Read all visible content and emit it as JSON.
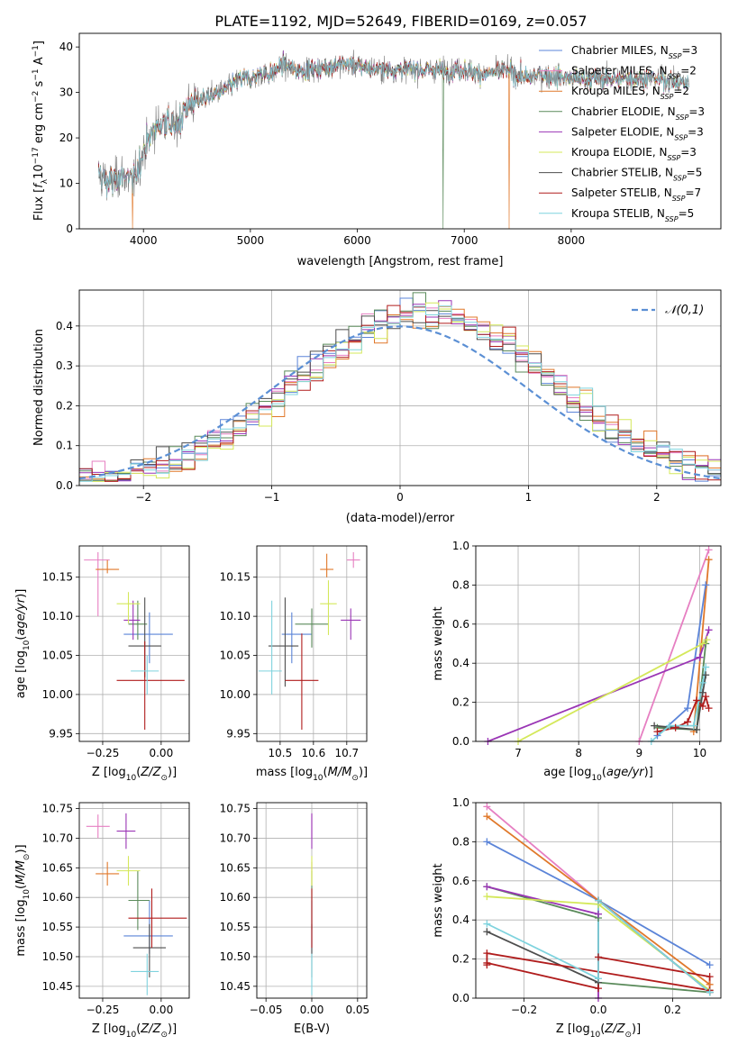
{
  "figure": {
    "title": "PLATE=1192, MJD=52649, FIBERID=0169, z=0.057"
  },
  "models": [
    {
      "name": "Chabrier MILES",
      "nssp": "3",
      "color": "#5b84d8"
    },
    {
      "name": "Salpeter MILES",
      "nssp": "2",
      "color": "#e67fc2"
    },
    {
      "name": "Kroupa MILES",
      "nssp": "2",
      "color": "#e0782a"
    },
    {
      "name": "Chabrier ELODIE",
      "nssp": "3",
      "color": "#5a8a5a"
    },
    {
      "name": "Salpeter ELODIE",
      "nssp": "3",
      "color": "#9a35b5"
    },
    {
      "name": "Kroupa ELODIE",
      "nssp": "3",
      "color": "#d4e85a"
    },
    {
      "name": "Chabrier STELIB",
      "nssp": "5",
      "color": "#4d4d4d"
    },
    {
      "name": "Salpeter STELIB",
      "nssp": "7",
      "color": "#b01c1c"
    },
    {
      "name": "Kroupa STELIB",
      "nssp": "5",
      "color": "#7fd3de"
    }
  ],
  "chart_data": [
    {
      "id": "spectrum",
      "type": "line",
      "xlabel": "wavelength [Angstrom, rest frame]",
      "ylabel": "Flux [f_λ 10^-17 erg cm^-2 s^-1 A^-1]",
      "xlim": [
        3400,
        9400
      ],
      "ylim": [
        0,
        43
      ],
      "xticks": [
        4000,
        5000,
        6000,
        7000,
        8000
      ],
      "yticks": [
        0,
        10,
        20,
        30,
        40
      ],
      "grid": false,
      "legend": "top-right",
      "continuum": [
        [
          3580,
          12
        ],
        [
          3700,
          10
        ],
        [
          3800,
          12
        ],
        [
          3900,
          10
        ],
        [
          4000,
          17
        ],
        [
          4100,
          22
        ],
        [
          4200,
          24
        ],
        [
          4300,
          22
        ],
        [
          4400,
          27
        ],
        [
          4500,
          28
        ],
        [
          4600,
          29
        ],
        [
          4700,
          30
        ],
        [
          4800,
          31
        ],
        [
          4900,
          33
        ],
        [
          5000,
          33
        ],
        [
          5100,
          34
        ],
        [
          5200,
          34
        ],
        [
          5300,
          36
        ],
        [
          5400,
          35
        ],
        [
          5500,
          35
        ],
        [
          5600,
          35
        ],
        [
          5800,
          36
        ],
        [
          6000,
          36
        ],
        [
          6200,
          35
        ],
        [
          6400,
          35
        ],
        [
          6600,
          35
        ],
        [
          6800,
          35
        ],
        [
          7000,
          35
        ],
        [
          7200,
          34
        ],
        [
          7400,
          35
        ],
        [
          7500,
          34
        ],
        [
          7600,
          33
        ],
        [
          7700,
          34
        ],
        [
          8000,
          33
        ],
        [
          8200,
          33
        ],
        [
          8500,
          33
        ],
        [
          8800,
          33
        ],
        [
          9100,
          32
        ]
      ],
      "data_range": [
        3580,
        9100
      ],
      "dropouts": [
        3580,
        3900,
        3920,
        6800,
        7420
      ]
    },
    {
      "id": "residuals",
      "type": "line",
      "xlabel": "(data-model)/error",
      "ylabel": "Normed distribution",
      "xlim": [
        -2.5,
        2.5
      ],
      "ylim": [
        0,
        0.49
      ],
      "xticks": [
        -2,
        -1,
        0,
        1,
        2
      ],
      "yticks": [
        0.0,
        0.1,
        0.2,
        0.3,
        0.4
      ],
      "grid": true,
      "legend": "top-right",
      "reference": {
        "label": "𝒩(0,1)",
        "mean": 0,
        "sigma": 1,
        "color": "#5b8fd4"
      },
      "bin_width": 0.1
    },
    {
      "id": "age-vs-Z",
      "type": "scatter",
      "xlabel": "Z [log10(Z/Z⊙)]",
      "ylabel": "age [log10(age/yr)]",
      "xlim": [
        -0.35,
        0.12
      ],
      "ylim": [
        9.94,
        10.19
      ],
      "xticks": [
        -0.25,
        0.0
      ],
      "yticks": [
        9.95,
        10.0,
        10.05,
        10.1,
        10.15
      ],
      "grid": true,
      "points": [
        {
          "x": -0.05,
          "y": 10.077,
          "xerr": [
            0.11,
            0.1
          ],
          "yerr": [
            0.037,
            0.028
          ]
        },
        {
          "x": -0.27,
          "y": 10.172,
          "xerr": [
            0.06,
            0.05
          ],
          "yerr": [
            0.072,
            0.01
          ]
        },
        {
          "x": -0.23,
          "y": 10.16,
          "xerr": [
            0.05,
            0.05
          ],
          "yerr": [
            0.005,
            0.012
          ]
        },
        {
          "x": -0.1,
          "y": 10.09,
          "xerr": [
            0.04,
            0.04
          ],
          "yerr": [
            0.02,
            0.03
          ]
        },
        {
          "x": -0.12,
          "y": 10.095,
          "xerr": [
            0.04,
            0.03
          ],
          "yerr": [
            0.025,
            0.025
          ]
        },
        {
          "x": -0.14,
          "y": 10.116,
          "xerr": [
            0.05,
            0.05
          ],
          "yerr": [
            0.025,
            0.015
          ]
        },
        {
          "x": -0.07,
          "y": 10.062,
          "xerr": [
            0.07,
            0.07
          ],
          "yerr": [
            0.04,
            0.062
          ]
        },
        {
          "x": -0.07,
          "y": 10.018,
          "xerr": [
            0.12,
            0.17
          ],
          "yerr": [
            0.063,
            0.05
          ]
        },
        {
          "x": -0.06,
          "y": 10.03,
          "xerr": [
            0.07,
            0.05
          ],
          "yerr": [
            0.03,
            0.02
          ]
        }
      ]
    },
    {
      "id": "age-vs-mass",
      "type": "scatter",
      "xlabel": "mass [log10(M/M⊙)]",
      "ylabel": "",
      "xlim": [
        10.43,
        10.76
      ],
      "ylim": [
        9.94,
        10.19
      ],
      "xticks": [
        10.5,
        10.6,
        10.7
      ],
      "yticks": [
        9.95,
        10.0,
        10.05,
        10.1,
        10.15
      ],
      "grid": true,
      "points": [
        {
          "x": 10.535,
          "y": 10.077,
          "xerr": [
            0.03,
            0.06
          ],
          "yerr": [
            0.037,
            0.028
          ]
        },
        {
          "x": 10.72,
          "y": 10.172,
          "xerr": [
            0.02,
            0.02
          ],
          "yerr": [
            0.01,
            0.01
          ]
        },
        {
          "x": 10.64,
          "y": 10.16,
          "xerr": [
            0.02,
            0.02
          ],
          "yerr": [
            0.01,
            0.02
          ]
        },
        {
          "x": 10.595,
          "y": 10.09,
          "xerr": [
            0.05,
            0.05
          ],
          "yerr": [
            0.03,
            0.02
          ]
        },
        {
          "x": 10.712,
          "y": 10.095,
          "xerr": [
            0.03,
            0.03
          ],
          "yerr": [
            0.025,
            0.015
          ]
        },
        {
          "x": 10.645,
          "y": 10.116,
          "xerr": [
            0.025,
            0.025
          ],
          "yerr": [
            0.04,
            0.03
          ]
        },
        {
          "x": 10.515,
          "y": 10.062,
          "xerr": [
            0.05,
            0.04
          ],
          "yerr": [
            0.052,
            0.062
          ]
        },
        {
          "x": 10.565,
          "y": 10.018,
          "xerr": [
            0.05,
            0.05
          ],
          "yerr": [
            0.063,
            0.06
          ]
        },
        {
          "x": 10.475,
          "y": 10.03,
          "xerr": [
            0.04,
            0.03
          ],
          "yerr": [
            0.03,
            0.09
          ]
        }
      ]
    },
    {
      "id": "weight-vs-age",
      "type": "line",
      "xlabel": "age [log10(age/yr)]",
      "ylabel": "mass weight",
      "xlim": [
        6.3,
        10.35
      ],
      "ylim": [
        0,
        1.0
      ],
      "xticks": [
        7,
        8,
        9,
        10
      ],
      "yticks": [
        0.0,
        0.2,
        0.4,
        0.6,
        0.8,
        1.0
      ],
      "grid": true,
      "series": [
        {
          "x": [
            9.3,
            9.8,
            10.1
          ],
          "y": [
            0.03,
            0.17,
            0.8
          ]
        },
        {
          "x": [
            9.0,
            10.15
          ],
          "y": [
            0.0,
            0.98
          ]
        },
        {
          "x": [
            9.9,
            10.15
          ],
          "y": [
            0.05,
            0.93
          ]
        },
        {
          "x": [
            9.3,
            9.95,
            10.1
          ],
          "y": [
            0.07,
            0.06,
            0.5
          ]
        },
        {
          "x": [
            6.5,
            10.0,
            10.15
          ],
          "y": [
            0.0,
            0.43,
            0.57
          ]
        },
        {
          "x": [
            7.0,
            10.05,
            10.12
          ],
          "y": [
            0.0,
            0.5,
            0.52
          ]
        },
        {
          "x": [
            9.25,
            9.95,
            10.05,
            10.1
          ],
          "y": [
            0.08,
            0.06,
            0.25,
            0.34
          ]
        },
        {
          "x": [
            9.3,
            9.6,
            9.8,
            9.95,
            10.05,
            10.1,
            10.15
          ],
          "y": [
            0.05,
            0.07,
            0.1,
            0.21,
            0.18,
            0.23,
            0.17
          ]
        },
        {
          "x": [
            9.2,
            9.5,
            9.9,
            10.05,
            10.1
          ],
          "y": [
            0.0,
            0.08,
            0.08,
            0.3,
            0.38
          ]
        }
      ]
    },
    {
      "id": "mass-vs-Z",
      "type": "scatter",
      "xlabel": "Z [log10(Z/Z⊙)]",
      "ylabel": "mass [log10(M/M⊙)]",
      "xlim": [
        -0.35,
        0.12
      ],
      "ylim": [
        10.43,
        10.76
      ],
      "xticks": [
        -0.25,
        0.0
      ],
      "yticks": [
        10.45,
        10.5,
        10.55,
        10.6,
        10.65,
        10.7,
        10.75
      ],
      "grid": true,
      "points": [
        {
          "x": -0.05,
          "y": 10.535,
          "xerr": [
            0.11,
            0.1
          ],
          "yerr": [
            0.03,
            0.06
          ]
        },
        {
          "x": -0.27,
          "y": 10.72,
          "xerr": [
            0.05,
            0.05
          ],
          "yerr": [
            0.02,
            0.02
          ]
        },
        {
          "x": -0.23,
          "y": 10.64,
          "xerr": [
            0.05,
            0.05
          ],
          "yerr": [
            0.02,
            0.02
          ]
        },
        {
          "x": -0.1,
          "y": 10.595,
          "xerr": [
            0.04,
            0.05
          ],
          "yerr": [
            0.05,
            0.05
          ]
        },
        {
          "x": -0.15,
          "y": 10.712,
          "xerr": [
            0.04,
            0.04
          ],
          "yerr": [
            0.03,
            0.03
          ]
        },
        {
          "x": -0.14,
          "y": 10.645,
          "xerr": [
            0.05,
            0.05
          ],
          "yerr": [
            0.025,
            0.025
          ]
        },
        {
          "x": -0.05,
          "y": 10.515,
          "xerr": [
            0.07,
            0.07
          ],
          "yerr": [
            0.05,
            0.04
          ]
        },
        {
          "x": -0.04,
          "y": 10.565,
          "xerr": [
            0.1,
            0.15
          ],
          "yerr": [
            0.05,
            0.05
          ]
        },
        {
          "x": -0.06,
          "y": 10.475,
          "xerr": [
            0.07,
            0.05
          ],
          "yerr": [
            0.04,
            0.03
          ]
        }
      ]
    },
    {
      "id": "mass-vs-ebv",
      "type": "scatter",
      "xlabel": "E(B-V)",
      "ylabel": "",
      "xlim": [
        -0.06,
        0.06
      ],
      "ylim": [
        10.43,
        10.76
      ],
      "xticks": [
        -0.05,
        0.0,
        0.05
      ],
      "yticks": [
        10.45,
        10.5,
        10.55,
        10.6,
        10.65,
        10.7,
        10.75
      ],
      "grid": true,
      "points": [
        {
          "x": 0,
          "y": 10.535,
          "xerr": [
            0,
            0
          ],
          "yerr": [
            0.03,
            0.06
          ]
        },
        {
          "x": 0,
          "y": 10.72,
          "xerr": [
            0,
            0
          ],
          "yerr": [
            0.02,
            0.02
          ]
        },
        {
          "x": 0,
          "y": 10.64,
          "xerr": [
            0,
            0
          ],
          "yerr": [
            0.02,
            0.02
          ]
        },
        {
          "x": 0,
          "y": 10.595,
          "xerr": [
            0,
            0
          ],
          "yerr": [
            0.05,
            0.05
          ]
        },
        {
          "x": 0,
          "y": 10.712,
          "xerr": [
            0,
            0
          ],
          "yerr": [
            0.03,
            0.03
          ]
        },
        {
          "x": 0,
          "y": 10.645,
          "xerr": [
            0,
            0
          ],
          "yerr": [
            0.025,
            0.025
          ]
        },
        {
          "x": 0,
          "y": 10.515,
          "xerr": [
            0,
            0
          ],
          "yerr": [
            0.05,
            0.04
          ]
        },
        {
          "x": 0,
          "y": 10.565,
          "xerr": [
            0,
            0
          ],
          "yerr": [
            0.05,
            0.05
          ]
        },
        {
          "x": 0,
          "y": 10.475,
          "xerr": [
            0,
            0
          ],
          "yerr": [
            0.04,
            0.03
          ]
        }
      ]
    },
    {
      "id": "weight-vs-Z",
      "type": "line",
      "xlabel": "Z [log10(Z/Z⊙)]",
      "ylabel": "mass weight",
      "xlim": [
        -0.33,
        0.33
      ],
      "ylim": [
        0,
        1.0
      ],
      "xticks": [
        -0.2,
        0.0,
        0.2
      ],
      "yticks": [
        0.0,
        0.2,
        0.4,
        0.6,
        0.8,
        1.0
      ],
      "grid": true,
      "series": [
        {
          "x": [
            -0.3,
            0.0,
            0.3
          ],
          "y": [
            0.8,
            0.5,
            0.17
          ]
        },
        {
          "x": [
            -0.3,
            0.0,
            0.3
          ],
          "y": [
            0.98,
            0.5,
            0.03
          ]
        },
        {
          "x": [
            -0.3,
            0.0,
            0.3
          ],
          "y": [
            0.93,
            0.5,
            0.07
          ]
        },
        {
          "x": [
            -0.3,
            0.0,
            0.0,
            0.3
          ],
          "y": [
            0.57,
            0.41,
            0.08,
            0.03
          ]
        },
        {
          "x": [
            -0.3,
            0.0,
            0.0
          ],
          "y": [
            0.57,
            0.43,
            0.0
          ]
        },
        {
          "x": [
            -0.3,
            0.0,
            0.3
          ],
          "y": [
            0.52,
            0.48,
            0.04
          ]
        },
        {
          "x": [
            -0.3,
            0.0,
            0.0,
            0.3
          ],
          "y": [
            0.34,
            0.08,
            0.5,
            0.03
          ]
        },
        {
          "x": [
            -0.3,
            0.0,
            0.0,
            0.3,
            0.3,
            -0.3,
            -0.3
          ],
          "y": [
            0.18,
            0.05,
            0.21,
            0.11,
            0.04,
            0.23,
            0.17
          ]
        },
        {
          "x": [
            -0.3,
            0.0,
            0.0,
            0.3
          ],
          "y": [
            0.38,
            0.1,
            0.5,
            0.03
          ]
        }
      ]
    }
  ]
}
